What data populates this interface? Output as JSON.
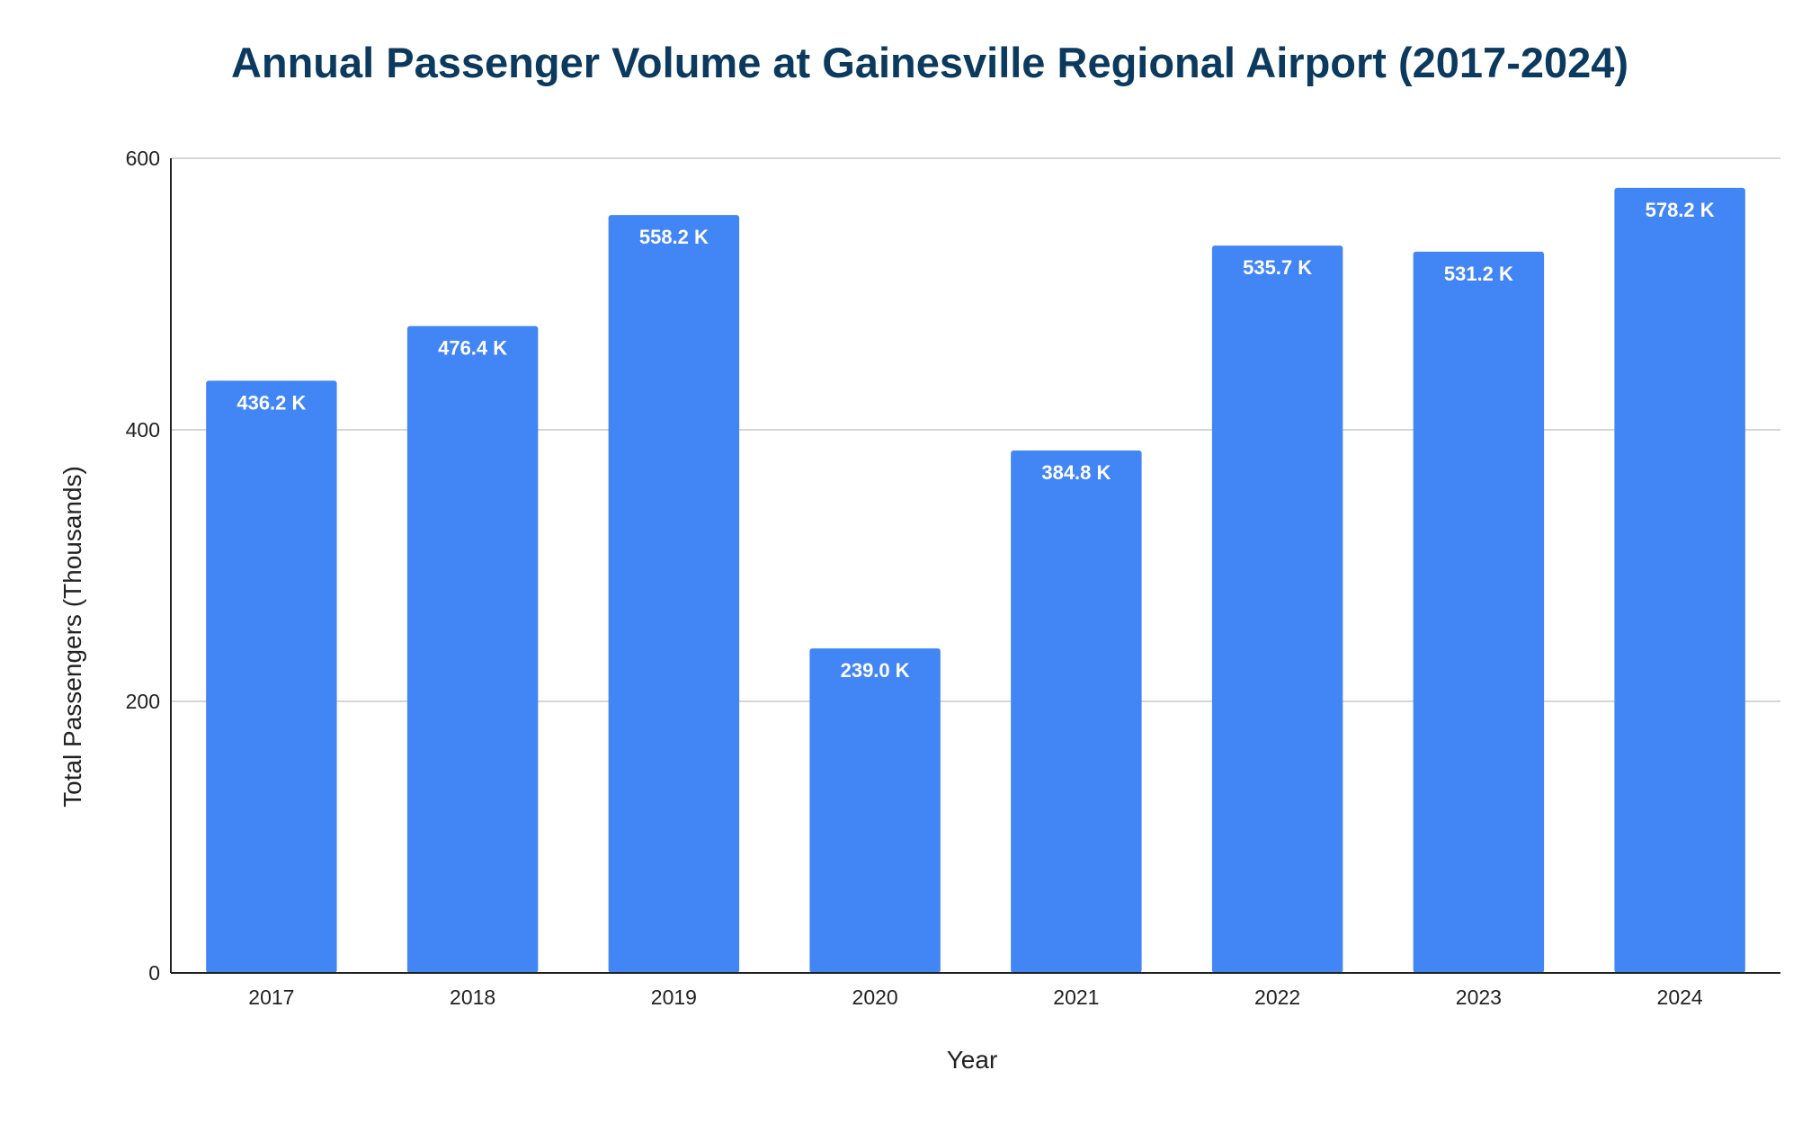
{
  "chart_data": {
    "type": "bar",
    "title": "Annual Passenger Volume at Gainesville Regional Airport (2017-2024)",
    "xlabel": "Year",
    "ylabel": "Total Passengers (Thousands)",
    "categories": [
      "2017",
      "2018",
      "2019",
      "2020",
      "2021",
      "2022",
      "2023",
      "2024"
    ],
    "values": [
      436.2,
      476.4,
      558.2,
      239.0,
      384.8,
      535.7,
      531.2,
      578.2
    ],
    "value_labels": [
      "436.2 K",
      "476.4 K",
      "558.2 K",
      "239.0 K",
      "384.8 K",
      "535.7 K",
      "531.2 K",
      "578.2 K"
    ],
    "ylim": [
      0,
      600
    ],
    "yticks": [
      0,
      200,
      400,
      600
    ],
    "grid": true,
    "legend": "none",
    "colors": {
      "bar": "#4285f4",
      "title": "#0b3a5e",
      "grid": "#c8c8c8",
      "axis": "#222222"
    }
  }
}
